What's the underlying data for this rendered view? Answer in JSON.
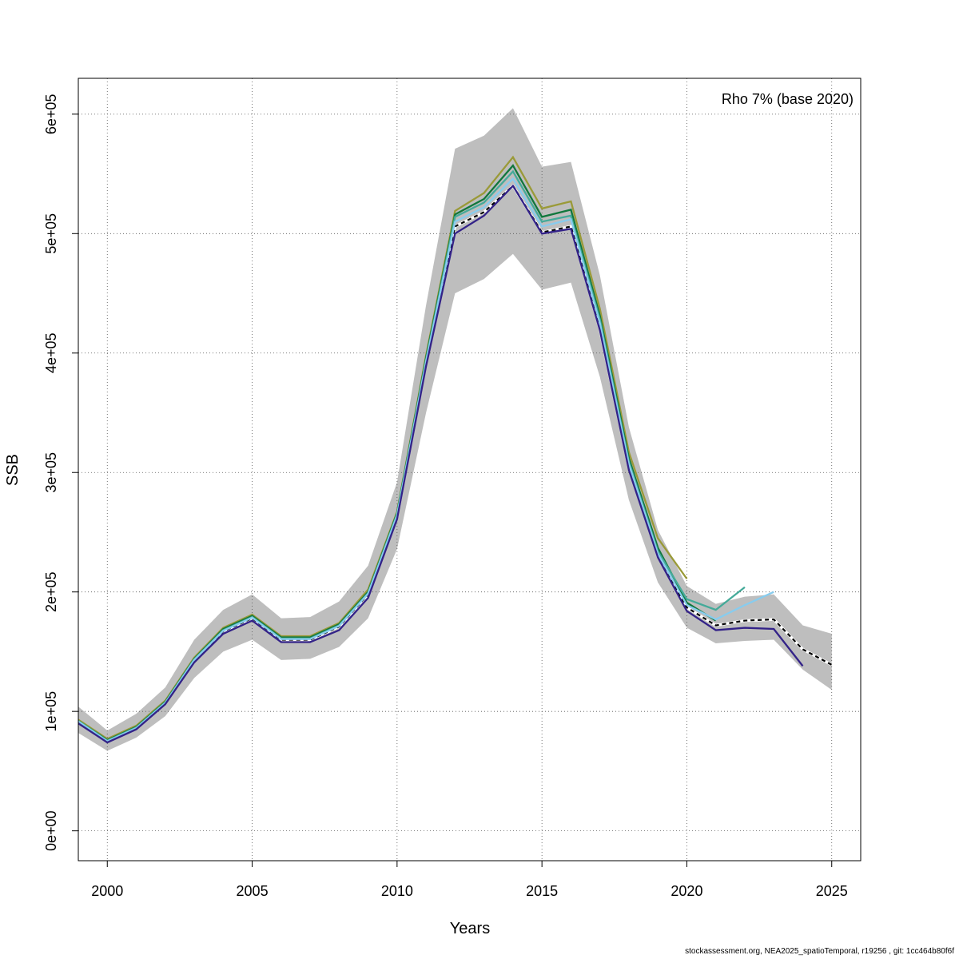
{
  "chart_data": {
    "type": "line",
    "xlabel": "Years",
    "ylabel": "SSB",
    "xlim": [
      1999,
      2026
    ],
    "ylim": [
      -25000,
      630000
    ],
    "xticks": [
      2000,
      2005,
      2010,
      2015,
      2020,
      2025
    ],
    "xtick_labels": [
      "2000",
      "2005",
      "2010",
      "2015",
      "2020",
      "2025"
    ],
    "yticks": [
      0,
      100000,
      200000,
      300000,
      400000,
      500000,
      600000
    ],
    "ytick_labels": [
      "0e+00",
      "1e+05",
      "2e+05",
      "3e+05",
      "4e+05",
      "5e+05",
      "6e+05"
    ],
    "grid": true,
    "annotation": "Rho 7% (base 2020)",
    "band_color": "#bebebe",
    "confidence_band": {
      "x": [
        1999,
        2000,
        2001,
        2002,
        2003,
        2004,
        2005,
        2006,
        2007,
        2008,
        2009,
        2010,
        2011,
        2012,
        2013,
        2014,
        2015,
        2016,
        2017,
        2018,
        2019,
        2020,
        2021,
        2022,
        2023,
        2024,
        2025
      ],
      "lower": [
        82000,
        67000,
        78000,
        96000,
        128000,
        150000,
        160000,
        143000,
        144000,
        154000,
        178000,
        236000,
        350000,
        450000,
        462000,
        483000,
        453000,
        459000,
        380000,
        277000,
        208000,
        170000,
        157000,
        159000,
        160000,
        135000,
        118000
      ],
      "upper": [
        104000,
        84000,
        98000,
        120000,
        160000,
        185000,
        198000,
        178000,
        179000,
        192000,
        222000,
        292000,
        440000,
        571000,
        582000,
        605000,
        556000,
        560000,
        465000,
        338000,
        252000,
        205000,
        190000,
        196000,
        198000,
        172000,
        165000
      ]
    },
    "series": [
      {
        "color": "#000000",
        "dashed": true,
        "x": [
          1999,
          2000,
          2001,
          2002,
          2003,
          2004,
          2005,
          2006,
          2007,
          2008,
          2009,
          2010,
          2011,
          2012,
          2013,
          2014,
          2015,
          2016,
          2017,
          2018,
          2019,
          2020,
          2021,
          2022,
          2023,
          2024,
          2025
        ],
        "values": [
          91000,
          75000,
          86000,
          107000,
          143000,
          167000,
          178000,
          160000,
          160000,
          171000,
          198000,
          263000,
          392000,
          506000,
          518000,
          540000,
          501000,
          506000,
          420000,
          304000,
          230000,
          187000,
          172000,
          176000,
          177000,
          152000,
          139000
        ]
      },
      {
        "color": "#9a9a38",
        "dashed": false,
        "x": [
          1999,
          2000,
          2001,
          2002,
          2003,
          2004,
          2005,
          2006,
          2007,
          2008,
          2009,
          2010,
          2011,
          2012,
          2013,
          2014,
          2015,
          2016,
          2017,
          2018,
          2019,
          2020
        ],
        "values": [
          93000,
          77000,
          88000,
          109000,
          145000,
          170000,
          181000,
          163000,
          163000,
          174000,
          202000,
          267000,
          398000,
          519000,
          534000,
          564000,
          521000,
          527000,
          437000,
          317000,
          245000,
          211000
        ]
      },
      {
        "color": "#11773c",
        "dashed": false,
        "x": [
          1999,
          2000,
          2001,
          2002,
          2003,
          2004,
          2005,
          2006,
          2007,
          2008,
          2009,
          2010,
          2011,
          2012,
          2013,
          2014,
          2015,
          2016,
          2017,
          2018,
          2019,
          2020,
          2021
        ],
        "values": [
          92000,
          76000,
          87000,
          108000,
          144000,
          169000,
          180000,
          162000,
          162000,
          173000,
          200000,
          266000,
          396000,
          516000,
          529000,
          557000,
          514000,
          520000,
          431000,
          312000,
          237000,
          191000,
          176000
        ]
      },
      {
        "color": "#44aa99",
        "dashed": false,
        "x": [
          1999,
          2000,
          2001,
          2002,
          2003,
          2004,
          2005,
          2006,
          2007,
          2008,
          2009,
          2010,
          2011,
          2012,
          2013,
          2014,
          2015,
          2016,
          2017,
          2018,
          2019,
          2020,
          2021,
          2022
        ],
        "values": [
          92000,
          75500,
          86500,
          107500,
          143500,
          168000,
          179000,
          161000,
          161000,
          172000,
          199000,
          265000,
          394000,
          514000,
          526000,
          552000,
          510000,
          515000,
          428000,
          309000,
          234000,
          194000,
          185000,
          204000
        ]
      },
      {
        "color": "#88ccee",
        "dashed": false,
        "x": [
          1999,
          2000,
          2001,
          2002,
          2003,
          2004,
          2005,
          2006,
          2007,
          2008,
          2009,
          2010,
          2011,
          2012,
          2013,
          2014,
          2015,
          2016,
          2017,
          2018,
          2019,
          2020,
          2021,
          2022,
          2023
        ],
        "values": [
          91500,
          75000,
          86000,
          107000,
          143000,
          167500,
          178500,
          160500,
          160500,
          171500,
          198500,
          264000,
          393000,
          510000,
          522000,
          546000,
          506000,
          512000,
          425000,
          307000,
          232000,
          189000,
          177000,
          189000,
          200000
        ]
      },
      {
        "color": "#332288",
        "dashed": false,
        "x": [
          1999,
          2000,
          2001,
          2002,
          2003,
          2004,
          2005,
          2006,
          2007,
          2008,
          2009,
          2010,
          2011,
          2012,
          2013,
          2014,
          2015,
          2016,
          2017,
          2018,
          2019,
          2020,
          2021,
          2022,
          2023,
          2024
        ],
        "values": [
          90000,
          74000,
          85000,
          106000,
          141000,
          165000,
          176000,
          158000,
          158000,
          168000,
          195000,
          261000,
          389000,
          500000,
          515000,
          540000,
          500000,
          504000,
          419000,
          302000,
          229000,
          184000,
          168000,
          170000,
          169000,
          138000
        ]
      }
    ]
  },
  "footer": "stockassessment.org, NEA2025_spatioTemporal, r19256 , git: 1cc464b80f6f"
}
